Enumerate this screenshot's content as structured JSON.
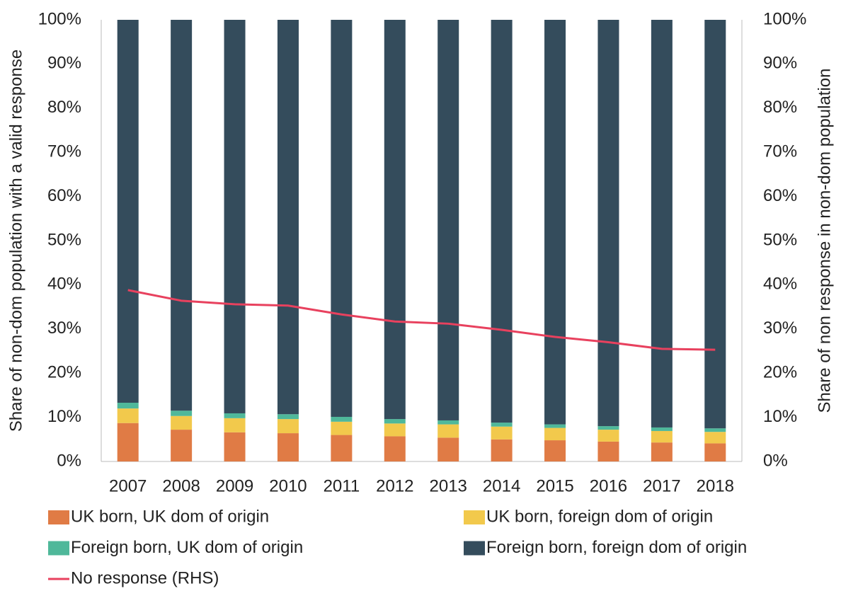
{
  "chart_data": {
    "type": "bar",
    "stacked": true,
    "y_label": "Share of non-dom population with a valid response",
    "y2_label": "Share of non response in non-dom population",
    "categories": [
      "2007",
      "2008",
      "2009",
      "2010",
      "2011",
      "2012",
      "2013",
      "2014",
      "2015",
      "2016",
      "2017",
      "2018"
    ],
    "series": [
      {
        "name": "UK born, UK dom of origin",
        "color": "#e07b45",
        "values": [
          8.7,
          7.2,
          6.6,
          6.4,
          6.0,
          5.7,
          5.4,
          5.0,
          4.8,
          4.5,
          4.3,
          4.1
        ]
      },
      {
        "name": "UK born, foreign dom of origin",
        "color": "#f2c94c",
        "values": [
          3.3,
          3.1,
          3.2,
          3.2,
          3.0,
          2.9,
          3.0,
          2.9,
          2.8,
          2.7,
          2.6,
          2.6
        ]
      },
      {
        "name": "Foreign born, UK dom of origin",
        "color": "#4fb89a",
        "values": [
          1.3,
          1.2,
          1.1,
          1.1,
          1.1,
          1.0,
          0.9,
          0.9,
          0.8,
          0.8,
          0.8,
          0.8
        ]
      },
      {
        "name": "Foreign born, foreign dom of origin",
        "color": "#344c5c",
        "values": [
          86.7,
          88.5,
          89.1,
          89.3,
          89.9,
          90.4,
          90.7,
          91.2,
          91.6,
          92.0,
          92.3,
          92.5
        ]
      },
      {
        "name": "No response (RHS)",
        "color": "#e8415e",
        "type": "line",
        "axis": "y2",
        "values": [
          38.8,
          36.4,
          35.6,
          35.3,
          33.3,
          31.7,
          31.2,
          29.8,
          28.2,
          27.0,
          25.5,
          25.3
        ]
      }
    ],
    "ylim": [
      0,
      100
    ],
    "yticks": [
      {
        "value": 0,
        "label": "0%"
      },
      {
        "value": 10,
        "label": "10%"
      },
      {
        "value": 20,
        "label": "20%"
      },
      {
        "value": 30,
        "label": "30%"
      },
      {
        "value": 40,
        "label": "40%"
      },
      {
        "value": 50,
        "label": "50%"
      },
      {
        "value": 60,
        "label": "60%"
      },
      {
        "value": 70,
        "label": "70%"
      },
      {
        "value": 80,
        "label": "80%"
      },
      {
        "value": 90,
        "label": "90%"
      },
      {
        "value": 100,
        "label": "100%"
      }
    ],
    "y2lim": [
      0,
      100
    ],
    "y2ticks": [
      {
        "value": 0,
        "label": "0%"
      },
      {
        "value": 10,
        "label": "10%"
      },
      {
        "value": 20,
        "label": "20%"
      },
      {
        "value": 30,
        "label": "30%"
      },
      {
        "value": 40,
        "label": "40%"
      },
      {
        "value": 50,
        "label": "50%"
      },
      {
        "value": 60,
        "label": "60%"
      },
      {
        "value": 70,
        "label": "70%"
      },
      {
        "value": 80,
        "label": "80%"
      },
      {
        "value": 90,
        "label": "90%"
      },
      {
        "value": 100,
        "label": "100%"
      }
    ],
    "legend": "bottom"
  }
}
